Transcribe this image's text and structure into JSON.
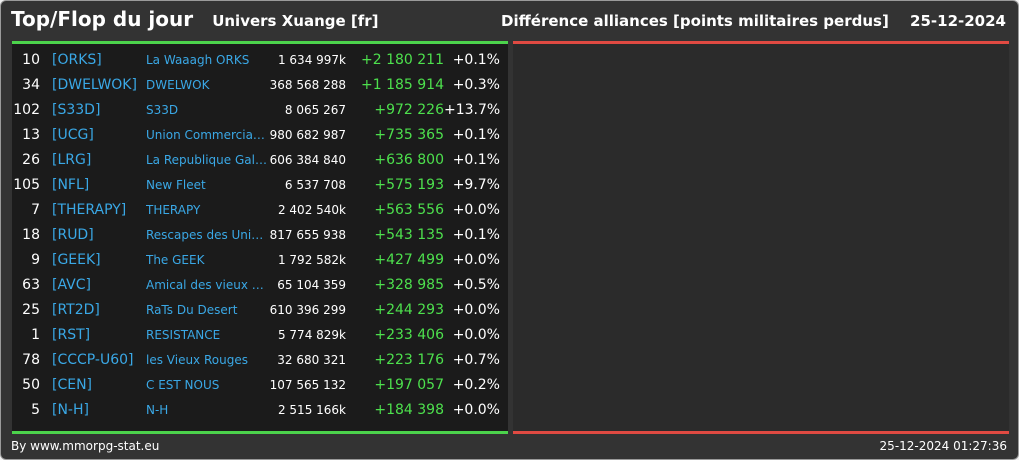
{
  "header": {
    "title": "Top/Flop du jour",
    "universe": "Univers Xuange [fr]",
    "subtitle": "Différence alliances [points militaires perdus]",
    "date": "25-12-2024"
  },
  "colors": {
    "top_accent": "#4cd34c",
    "flop_accent": "#e04a42",
    "tag_color": "#3aa8e6",
    "diff_color": "#4de04d"
  },
  "top_rows": [
    {
      "rank": "10",
      "tag": "[ORKS]",
      "name": "La Waaagh ORKS",
      "points": "1 634 997k",
      "diff": "+2 180 211",
      "pct": "+0.1%"
    },
    {
      "rank": "34",
      "tag": "[DWELWOK]",
      "name": "DWELWOK",
      "points": "368 568 288",
      "diff": "+1 185 914",
      "pct": "+0.3%"
    },
    {
      "rank": "102",
      "tag": "[S33D]",
      "name": "S33D",
      "points": "8 065 267",
      "diff": "+972 226",
      "pct": "+13.7%"
    },
    {
      "rank": "13",
      "tag": "[UCG]",
      "name": "Union Commerciale...",
      "points": "980 682 987",
      "diff": "+735 365",
      "pct": "+0.1%"
    },
    {
      "rank": "26",
      "tag": "[LRG]",
      "name": "La Republique Gala...",
      "points": "606 384 840",
      "diff": "+636 800",
      "pct": "+0.1%"
    },
    {
      "rank": "105",
      "tag": "[NFL]",
      "name": "New Fleet",
      "points": "6 537 708",
      "diff": "+575 193",
      "pct": "+9.7%"
    },
    {
      "rank": "7",
      "tag": "[THERAPY]",
      "name": "THERAPY",
      "points": "2 402 540k",
      "diff": "+563 556",
      "pct": "+0.0%"
    },
    {
      "rank": "18",
      "tag": "[RUD]",
      "name": "Rescapes des Univ...",
      "points": "817 655 938",
      "diff": "+543 135",
      "pct": "+0.1%"
    },
    {
      "rank": "9",
      "tag": "[GEEK]",
      "name": "The GEEK",
      "points": "1 792 582k",
      "diff": "+427 499",
      "pct": "+0.0%"
    },
    {
      "rank": "63",
      "tag": "[AVC]",
      "name": "Amical des vieux co...",
      "points": "65 104 359",
      "diff": "+328 985",
      "pct": "+0.5%"
    },
    {
      "rank": "25",
      "tag": "[RT2D]",
      "name": "RaTs Du Desert",
      "points": "610 396 299",
      "diff": "+244 293",
      "pct": "+0.0%"
    },
    {
      "rank": "1",
      "tag": "[RST]",
      "name": "RESISTANCE",
      "points": "5 774 829k",
      "diff": "+233 406",
      "pct": "+0.0%"
    },
    {
      "rank": "78",
      "tag": "[CCCP-U60]",
      "name": "les Vieux Rouges",
      "points": "32 680 321",
      "diff": "+223 176",
      "pct": "+0.7%"
    },
    {
      "rank": "50",
      "tag": "[CEN]",
      "name": "C EST NOUS",
      "points": "107 565 132",
      "diff": "+197 057",
      "pct": "+0.2%"
    },
    {
      "rank": "5",
      "tag": "[N-H]",
      "name": "N-H",
      "points": "2 515 166k",
      "diff": "+184 398",
      "pct": "+0.0%"
    }
  ],
  "footer": {
    "credit": "By www.mmorpg-stat.eu",
    "timestamp": "25-12-2024 01:27:36"
  }
}
